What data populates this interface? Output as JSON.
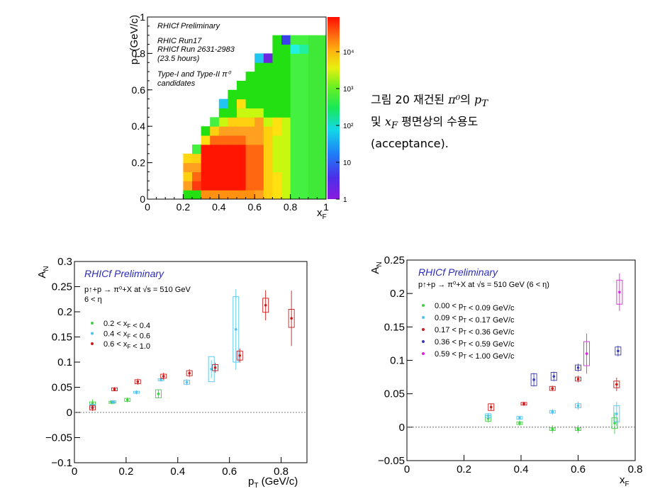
{
  "caption": {
    "line1_pre": "그림 20 재건된",
    "pi0": "π⁰",
    "line1_mid": "의",
    "pt": "p",
    "pt_sub": "T",
    "line2_pre": "및",
    "xf": "x",
    "xf_sub": "F",
    "line2_post": "평면상의 수용도",
    "line3": "(acceptance)."
  },
  "chart_data": [
    {
      "type": "heatmap",
      "xlabel": "x_F",
      "ylabel": "p_T (GeV/c)",
      "xlim": [
        0,
        1
      ],
      "ylim": [
        0,
        1
      ],
      "x_ticks": [
        "0",
        "0.2",
        "0.4",
        "0.6",
        "0.8",
        "1"
      ],
      "y_ticks": [
        "0",
        "0.2",
        "0.4",
        "0.6",
        "0.8",
        "1"
      ],
      "colorbar_ticks": [
        "1",
        "10",
        "10²",
        "10³",
        "10⁴"
      ],
      "colorbar_log": true,
      "annotations": [
        "RHICf Preliminary",
        "RHIC Run17",
        "RHICf Run 2631-2983",
        "(23.5 hours)",
        "Type-I and Type-II π⁰",
        "candidates"
      ],
      "bin_width_x": 0.05,
      "bin_width_y": 0.05,
      "columns": [
        {
          "x0": 0.2,
          "top_bin": 5,
          "colors": [
            "#22e012",
            "#ffa020",
            "#ffd010",
            "#ffa020",
            "#ffd810"
          ]
        },
        {
          "x0": 0.25,
          "top_bin": 6,
          "colors": [
            "#22e012",
            "#ff3a10",
            "#ff6810",
            "#ffa020",
            "#ffd010",
            "#44f040"
          ]
        },
        {
          "x0": 0.3,
          "top_bin": 8,
          "colors": [
            "#ff9010",
            "#ff1500",
            "#ff1500",
            "#ff1500",
            "#ff1500",
            "#ff1500",
            "#ffe010",
            "#22e012"
          ]
        },
        {
          "x0": 0.35,
          "top_bin": 9,
          "colors": [
            "#ff9010",
            "#ff1500",
            "#ff1500",
            "#ff1500",
            "#ff1500",
            "#ff1500",
            "#ff6810",
            "#ffd010",
            "#44f040"
          ]
        },
        {
          "x0": 0.4,
          "top_bin": 11,
          "colors": [
            "#ff9010",
            "#ff1500",
            "#ff1500",
            "#ff1500",
            "#ff1500",
            "#ff1500",
            "#ff6810",
            "#ffa020",
            "#c8f810",
            "#22e012",
            "#22c4f0"
          ]
        },
        {
          "x0": 0.45,
          "top_bin": 12,
          "colors": [
            "#ff9010",
            "#ff1500",
            "#ff1500",
            "#ff1500",
            "#ff1500",
            "#ff1500",
            "#ff6810",
            "#ffa020",
            "#ffd010",
            "#22e012",
            "#22e012",
            "#22e012"
          ]
        },
        {
          "x0": 0.5,
          "top_bin": 13,
          "colors": [
            "#ff9010",
            "#ff1500",
            "#ff1500",
            "#ff1500",
            "#ff1500",
            "#ff1500",
            "#ff6810",
            "#ffa020",
            "#ffd010",
            "#c8f810",
            "#ffe010",
            "#22e012",
            "#22e012"
          ]
        },
        {
          "x0": 0.55,
          "top_bin": 14,
          "colors": [
            "#ff9010",
            "#ff6810",
            "#ff6810",
            "#ff6810",
            "#ff6810",
            "#ff6810",
            "#ffa020",
            "#ffa020",
            "#ffd010",
            "#c8f810",
            "#22e012",
            "#22e012",
            "#22e012",
            "#22e012"
          ]
        },
        {
          "x0": 0.6,
          "top_bin": 16,
          "colors": [
            "#ffa020",
            "#ff6810",
            "#ff6810",
            "#ff6810",
            "#ff6810",
            "#ff6810",
            "#ffa020",
            "#ffa020",
            "#ffa020",
            "#c8f810",
            "#22e012",
            "#22e012",
            "#22e012",
            "#22e012",
            "#22e012",
            "#22c4f0"
          ]
        },
        {
          "x0": 0.65,
          "top_bin": 16,
          "colors": [
            "#ffd010",
            "#ffd010",
            "#ffd010",
            "#ffd010",
            "#ffd010",
            "#ffd010",
            "#ffd010",
            "#ffd010",
            "#c8f810",
            "#22e012",
            "#22e012",
            "#22e012",
            "#22e012",
            "#22e012",
            "#22e012",
            "#6a28e0"
          ]
        },
        {
          "x0": 0.7,
          "top_bin": 18,
          "colors": [
            "#ffe010",
            "#ffe010",
            "#ffe010",
            "#c8f810",
            "#c8f810",
            "#c8f810",
            "#c8f810",
            "#ffe010",
            "#ffe010",
            "#22e012",
            "#22e012",
            "#22e012",
            "#22e012",
            "#22e012",
            "#22e012",
            "#22e012",
            "#22e012",
            "#22e012"
          ]
        },
        {
          "x0": 0.75,
          "top_bin": 18,
          "colors": [
            "#c8f810",
            "#c8f810",
            "#c8f810",
            "#c8f810",
            "#c8f810",
            "#c8f810",
            "#c8f810",
            "#c8f810",
            "#c8f810",
            "#22e012",
            "#22e012",
            "#22e012",
            "#22e012",
            "#22e012",
            "#22e012",
            "#22e012",
            "#22e012",
            "#3a40e8"
          ]
        },
        {
          "x0": 0.8,
          "top_bin": 18,
          "colors": [
            "#44f040",
            "#44f040",
            "#44f040",
            "#44f040",
            "#44f040",
            "#44f040",
            "#44f040",
            "#44f040",
            "#44f040",
            "#44f040",
            "#44f040",
            "#44f040",
            "#44f040",
            "#44f040",
            "#44f040",
            "#44f040",
            "#22f0e0",
            "#44f040"
          ]
        },
        {
          "x0": 0.85,
          "top_bin": 18,
          "colors": [
            "#44f040",
            "#44f040",
            "#44f040",
            "#44f040",
            "#44f040",
            "#44f040",
            "#44f040",
            "#44f040",
            "#44f040",
            "#44f040",
            "#44f040",
            "#44f040",
            "#44f040",
            "#44f040",
            "#44f040",
            "#44f040",
            "#22f0a0",
            "#44f040"
          ]
        },
        {
          "x0": 0.9,
          "top_bin": 18,
          "colors": [
            "#40e838",
            "#40e838",
            "#40e838",
            "#40e838",
            "#40e838",
            "#40e838",
            "#40e838",
            "#40e838",
            "#40e838",
            "#40e838",
            "#40e838",
            "#40e838",
            "#40e838",
            "#40e838",
            "#40e838",
            "#40e838",
            "#40e838",
            "#40e838"
          ]
        },
        {
          "x0": 0.95,
          "top_bin": 18,
          "colors": [
            "#40e838",
            "#40e838",
            "#40e838",
            "#40e838",
            "#40e838",
            "#40e838",
            "#40e838",
            "#40e838",
            "#40e838",
            "#40e838",
            "#40e838",
            "#40e838",
            "#40e838",
            "#40e838",
            "#40e838",
            "#40e838",
            "#40e838",
            "#40e838"
          ]
        }
      ]
    },
    {
      "type": "scatter",
      "ylabel": "A_N",
      "xlabel": "p_T (GeV/c)",
      "xlim": [
        0,
        0.9
      ],
      "ylim": [
        -0.1,
        0.3
      ],
      "x_ticks": [
        "0",
        "0.2",
        "0.4",
        "0.6",
        "0.8"
      ],
      "y_ticks": [
        "−0.1",
        "−0.05",
        "0",
        "0.05",
        "0.1",
        "0.15",
        "0.2",
        "0.25",
        "0.3"
      ],
      "title": "RHICf Preliminary",
      "subtitle_lines": [
        "p↑+p → π⁰+X at √s = 510 GeV",
        "6 < η"
      ],
      "legend_position": "upper-left",
      "series": [
        {
          "name": "0.2 < x_F < 0.4",
          "color": "#3fd23f",
          "points": [
            [
              0.07,
              0.018,
              0.008,
              0.003
            ],
            [
              0.145,
              0.02,
              0.004,
              0.002
            ],
            [
              0.205,
              0.025,
              0.005,
              0.003
            ],
            [
              0.325,
              0.037,
              0.009,
              0.008
            ]
          ]
        },
        {
          "name": "0.4 < x_F < 0.6",
          "color": "#4cc4ef",
          "points": [
            [
              0.07,
              0.013,
              0.004,
              0.003
            ],
            [
              0.15,
              0.021,
              0.003,
              0.002
            ],
            [
              0.24,
              0.04,
              0.004,
              0.002
            ],
            [
              0.335,
              0.065,
              0.004,
              0.002
            ],
            [
              0.435,
              0.06,
              0.006,
              0.004
            ],
            [
              0.53,
              0.086,
              0.018,
              0.025
            ],
            [
              0.625,
              0.165,
              0.08,
              0.065
            ]
          ]
        },
        {
          "name": "0.6 < x_F < 1.0",
          "color": "#d01818",
          "points": [
            [
              0.07,
              0.009,
              0.006,
              0.004
            ],
            [
              0.155,
              0.046,
              0.004,
              0.003
            ],
            [
              0.245,
              0.061,
              0.006,
              0.004
            ],
            [
              0.345,
              0.072,
              0.007,
              0.004
            ],
            [
              0.445,
              0.078,
              0.008,
              0.005
            ],
            [
              0.545,
              0.089,
              0.01,
              0.006
            ],
            [
              0.64,
              0.113,
              0.014,
              0.009
            ],
            [
              0.74,
              0.213,
              0.03,
              0.014
            ],
            [
              0.84,
              0.187,
              0.055,
              0.018
            ]
          ]
        }
      ]
    },
    {
      "type": "scatter",
      "ylabel": "A_N",
      "xlabel": "x_F",
      "xlim": [
        0,
        0.8
      ],
      "ylim": [
        -0.05,
        0.25
      ],
      "x_ticks": [
        "0",
        "0.2",
        "0.4",
        "0.6",
        "0.8"
      ],
      "y_ticks": [
        "−0.05",
        "0",
        "0.05",
        "0.1",
        "0.15",
        "0.2",
        "0.25"
      ],
      "title": "RHICf Preliminary",
      "subtitle_lines": [
        "p↑+p → π⁰+X at √s = 510 GeV (6 < η)"
      ],
      "legend_position": "upper-left",
      "series": [
        {
          "name": "0.00 < p_T < 0.09 GeV/c",
          "color": "#3fd23f",
          "points": [
            [
              0.285,
              0.013,
              0.006,
              0.004
            ],
            [
              0.395,
              0.006,
              0.004,
              0.002
            ],
            [
              0.51,
              -0.003,
              0.006,
              0.002
            ],
            [
              0.6,
              -0.003,
              0.006,
              0.002
            ],
            [
              0.728,
              0.006,
              0.016,
              0.008
            ]
          ]
        },
        {
          "name": "0.09 < p_T < 0.17 GeV/c",
          "color": "#4cc4ef",
          "points": [
            [
              0.285,
              0.017,
              0.004,
              0.003
            ],
            [
              0.395,
              0.014,
              0.003,
              0.002
            ],
            [
              0.51,
              0.023,
              0.004,
              0.002
            ],
            [
              0.6,
              0.032,
              0.006,
              0.003
            ],
            [
              0.735,
              0.02,
              0.018,
              0.012
            ]
          ]
        },
        {
          "name": "0.17 < p_T < 0.36 GeV/c",
          "color": "#d01818",
          "points": [
            [
              0.295,
              0.03,
              0.005,
              0.005
            ],
            [
              0.41,
              0.035,
              0.003,
              0.002
            ],
            [
              0.51,
              0.058,
              0.004,
              0.003
            ],
            [
              0.6,
              0.072,
              0.005,
              0.003
            ],
            [
              0.735,
              0.064,
              0.01,
              0.005
            ]
          ]
        },
        {
          "name": "0.36 < p_T < 0.59 GeV/c",
          "color": "#3838b8",
          "points": [
            [
              0.445,
              0.071,
              0.01,
              0.009
            ],
            [
              0.515,
              0.076,
              0.007,
              0.006
            ],
            [
              0.6,
              0.089,
              0.006,
              0.004
            ],
            [
              0.74,
              0.114,
              0.008,
              0.006
            ]
          ]
        },
        {
          "name": "0.59 < p_T < 1.00 GeV/c",
          "color": "#e020e0",
          "points": [
            [
              0.63,
              0.11,
              0.03,
              0.018
            ],
            [
              0.745,
              0.202,
              0.028,
              0.018
            ]
          ]
        }
      ]
    }
  ]
}
